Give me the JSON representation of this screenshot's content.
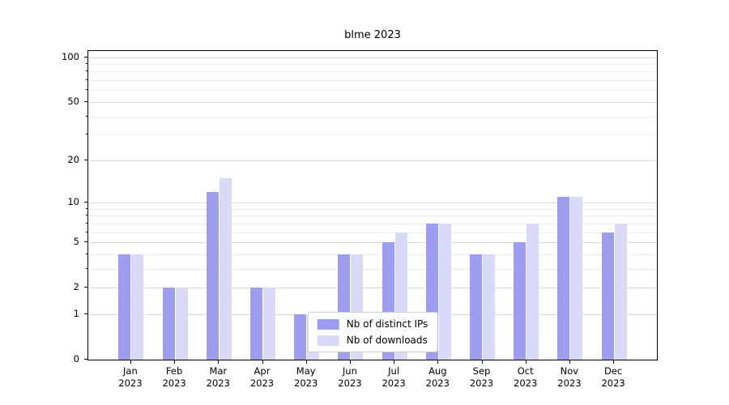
{
  "chart_data": {
    "type": "bar",
    "title": "blme 2023",
    "categories": [
      "Jan 2023",
      "Feb 2023",
      "Mar 2023",
      "Apr 2023",
      "May 2023",
      "Jun 2023",
      "Jul 2023",
      "Aug 2023",
      "Sep 2023",
      "Oct 2023",
      "Nov 2023",
      "Dec 2023"
    ],
    "series": [
      {
        "name": "Nb of distinct IPs",
        "color": "#9e9ef0",
        "values": [
          4,
          2,
          12,
          2,
          1,
          4,
          5,
          7,
          4,
          5,
          11,
          6
        ]
      },
      {
        "name": "Nb of downloads",
        "color": "#d9d9f8",
        "values": [
          4,
          2,
          15,
          2,
          1,
          4,
          6,
          7,
          4,
          7,
          11,
          7
        ]
      }
    ],
    "xlabel": "",
    "ylabel": "",
    "yscale": "log1p",
    "ylim": [
      0,
      110
    ],
    "yticks": [
      0,
      1,
      2,
      5,
      10,
      20,
      50,
      100
    ],
    "minor_yticks": [
      3,
      4,
      6,
      7,
      8,
      9,
      30,
      40,
      60,
      70,
      80,
      90
    ],
    "grid": "horizontal",
    "legend_position": "lower center",
    "colors": {
      "axis": "#000000",
      "grid_major": "#dcdcdc",
      "grid_minor": "#ededed",
      "background": "#ffffff"
    }
  }
}
